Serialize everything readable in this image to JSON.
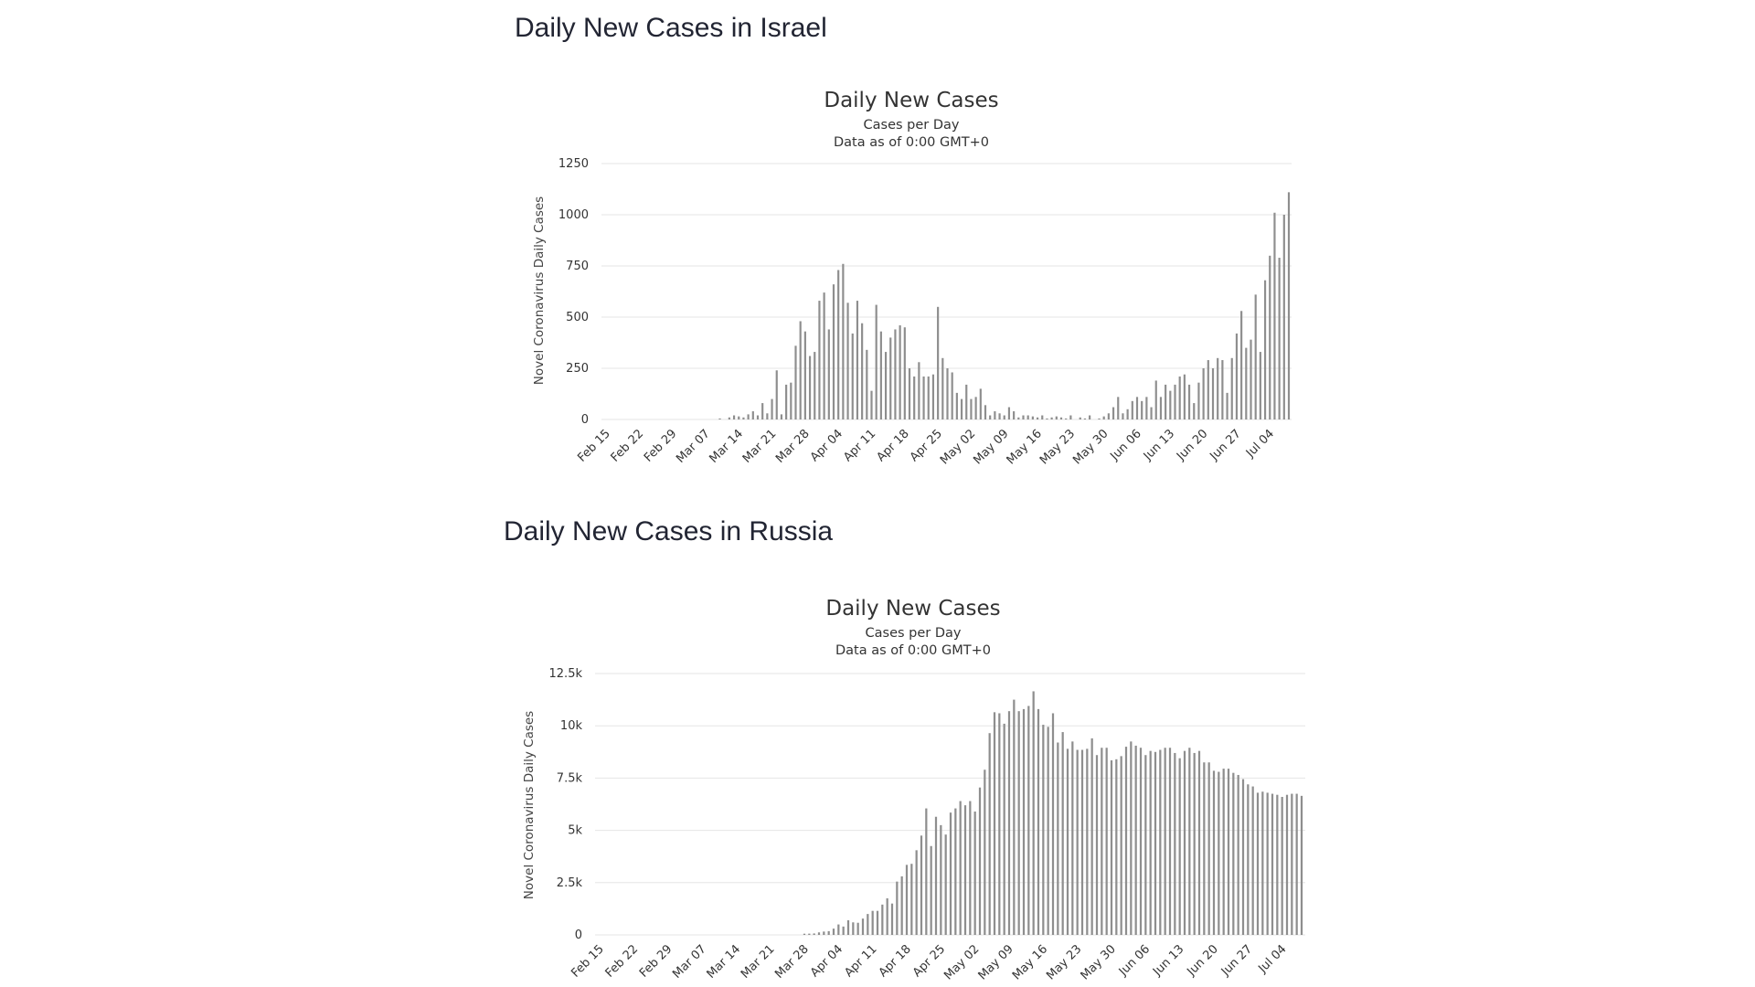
{
  "sections": [
    {
      "title": "Daily New Cases in Israel"
    },
    {
      "title": "Daily New Cases in Russia"
    }
  ],
  "colors": {
    "bar": "#8e8e8e",
    "grid": "#e6e6e6",
    "text": "#333333"
  },
  "chart_data": [
    {
      "type": "bar",
      "title": "Daily New Cases",
      "subtitle": "Cases per Day",
      "subtitle2": "Data as of 0:00 GMT+0",
      "xlabel": "",
      "ylabel": "Novel Coronavirus Daily Cases",
      "ylim": [
        0,
        1250
      ],
      "yticks": [
        0,
        250,
        500,
        750,
        1000,
        1250
      ],
      "ytick_labels": [
        "0",
        "250",
        "500",
        "750",
        "1000",
        "1250"
      ],
      "grid": true,
      "legend": "none",
      "x_tick_labels": [
        "Feb 15",
        "Feb 22",
        "Feb 29",
        "Mar 07",
        "Mar 14",
        "Mar 21",
        "Mar 28",
        "Apr 04",
        "Apr 11",
        "Apr 18",
        "Apr 25",
        "May 02",
        "May 09",
        "May 16",
        "May 23",
        "May 30",
        "Jun 06",
        "Jun 13",
        "Jun 20",
        "Jun 27",
        "Jul 04"
      ],
      "first_date": "Feb 15",
      "last_date": "Jul 04",
      "values": [
        0,
        0,
        0,
        0,
        0,
        0,
        0,
        0,
        0,
        0,
        0,
        0,
        0,
        0,
        0,
        0,
        0,
        0,
        0,
        0,
        0,
        0,
        0,
        0,
        5,
        0,
        10,
        20,
        15,
        10,
        25,
        40,
        20,
        80,
        30,
        100,
        240,
        25,
        170,
        180,
        360,
        480,
        430,
        310,
        330,
        580,
        620,
        440,
        660,
        730,
        760,
        570,
        420,
        580,
        470,
        340,
        140,
        560,
        430,
        330,
        400,
        440,
        460,
        450,
        250,
        210,
        280,
        210,
        210,
        220,
        550,
        300,
        250,
        230,
        130,
        100,
        170,
        100,
        110,
        150,
        70,
        20,
        40,
        30,
        20,
        60,
        40,
        10,
        20,
        20,
        15,
        10,
        20,
        5,
        10,
        15,
        10,
        5,
        20,
        0,
        10,
        5,
        20,
        0,
        5,
        15,
        30,
        60,
        110,
        30,
        50,
        90,
        110,
        90,
        110,
        60,
        190,
        110,
        170,
        140,
        170,
        210,
        220,
        170,
        80,
        180,
        250,
        290,
        250,
        300,
        290,
        130,
        300,
        420,
        530,
        350,
        390,
        610,
        330,
        680,
        800,
        1010,
        790,
        1000,
        1110
      ]
    },
    {
      "type": "bar",
      "title": "Daily New Cases",
      "subtitle": "Cases per Day",
      "subtitle2": "Data as of 0:00 GMT+0",
      "xlabel": "",
      "ylabel": "Novel Coronavirus Daily Cases",
      "ylim": [
        0,
        12500
      ],
      "yticks": [
        0,
        2500,
        5000,
        7500,
        10000,
        12500
      ],
      "ytick_labels": [
        "0",
        "2.5k",
        "5k",
        "7.5k",
        "10k",
        "12.5k"
      ],
      "grid": true,
      "legend": "none",
      "x_tick_labels": [
        "Feb 15",
        "Feb 22",
        "Feb 29",
        "Mar 07",
        "Mar 14",
        "Mar 21",
        "Mar 28",
        "Apr 04",
        "Apr 11",
        "Apr 18",
        "Apr 25",
        "May 02",
        "May 09",
        "May 16",
        "May 23",
        "May 30",
        "Jun 06",
        "Jun 13",
        "Jun 20",
        "Jun 27",
        "Jul 04"
      ],
      "first_date": "Feb 15",
      "last_date": "Jul 04",
      "values": [
        0,
        0,
        0,
        0,
        0,
        0,
        0,
        0,
        0,
        0,
        0,
        0,
        0,
        0,
        0,
        0,
        0,
        0,
        0,
        0,
        0,
        0,
        0,
        0,
        0,
        0,
        0,
        0,
        0,
        0,
        0,
        0,
        0,
        0,
        0,
        0,
        0,
        0,
        0,
        0,
        0,
        0,
        57,
        60,
        70,
        120,
        160,
        180,
        300,
        500,
        400,
        700,
        600,
        580,
        780,
        1000,
        1150,
        1150,
        1450,
        1750,
        1500,
        2550,
        2800,
        3350,
        3400,
        4050,
        4750,
        6050,
        4250,
        5650,
        5250,
        4800,
        5850,
        6050,
        6400,
        6200,
        6400,
        5900,
        7050,
        7900,
        9650,
        10650,
        10600,
        10100,
        10700,
        11250,
        10700,
        10800,
        10950,
        11650,
        10800,
        10050,
        9950,
        10600,
        9200,
        9700,
        8900,
        9250,
        8850,
        8850,
        8900,
        9400,
        8600,
        8950,
        8950,
        8350,
        8400,
        8550,
        9000,
        9250,
        9050,
        8950,
        8600,
        8800,
        8750,
        8850,
        8950,
        8950,
        8700,
        8450,
        8800,
        8950,
        8700,
        8800,
        8250,
        8250,
        7850,
        7800,
        7950,
        7950,
        7750,
        7650,
        7450,
        7200,
        7100,
        6800,
        6850,
        6800,
        6750,
        6700,
        6600,
        6700,
        6750,
        6750,
        6650
      ]
    }
  ]
}
